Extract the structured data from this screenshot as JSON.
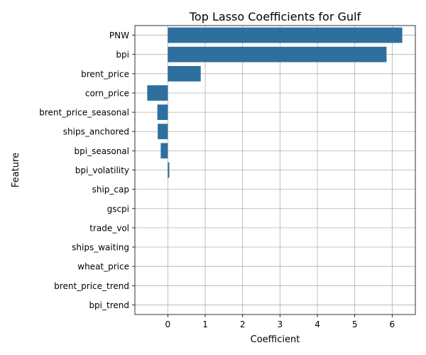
{
  "chart_data": {
    "type": "bar",
    "orientation": "horizontal",
    "title": "Top Lasso Coefficients for Gulf",
    "xlabel": "Coefficient",
    "ylabel": "Feature",
    "categories": [
      "PNW",
      "bpi",
      "brent_price",
      "corn_price",
      "brent_price_seasonal",
      "ships_anchored",
      "bpi_seasonal",
      "bpi_volatility",
      "ship_cap",
      "gscpi",
      "trade_vol",
      "ships_waiting",
      "wheat_price",
      "brent_price_trend",
      "bpi_trend"
    ],
    "values": [
      6.27,
      5.85,
      0.88,
      -0.55,
      -0.28,
      -0.27,
      -0.19,
      0.04,
      0,
      0,
      0,
      0,
      0,
      0,
      0
    ],
    "xlim": [
      -0.88,
      6.62
    ],
    "xticks": [
      0,
      1,
      2,
      3,
      4,
      5,
      6
    ],
    "grid": true,
    "bar_color": "#2f6f9f"
  }
}
